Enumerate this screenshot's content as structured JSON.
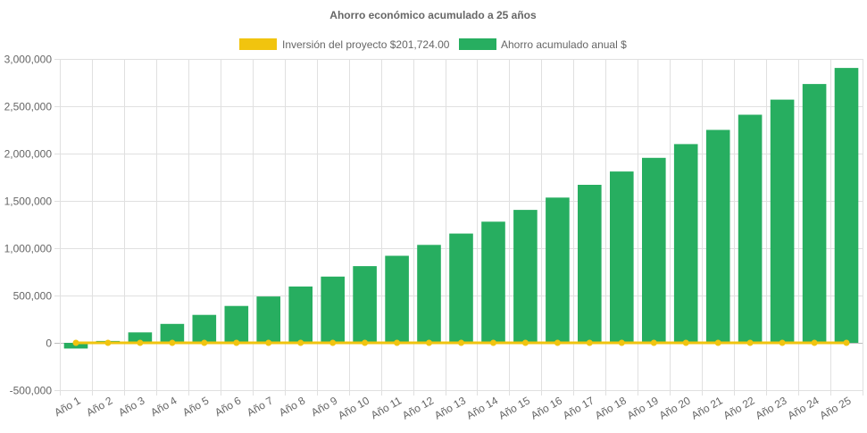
{
  "chart_data": {
    "type": "bar",
    "title": "Ahorro económico acumulado a 25 años",
    "categories": [
      "Año 1",
      "Año 2",
      "Año 3",
      "Año 4",
      "Año 5",
      "Año 6",
      "Año 7",
      "Año 8",
      "Año 9",
      "Año 10",
      "Año 11",
      "Año 12",
      "Año 13",
      "Año 14",
      "Año 15",
      "Año 16",
      "Año 17",
      "Año 18",
      "Año 19",
      "Año 20",
      "Año 21",
      "Año 22",
      "Año 23",
      "Año 24",
      "Año 25"
    ],
    "series": [
      {
        "name": "Inversión del proyecto $201,724.00",
        "type": "line",
        "color": "#f1c40f",
        "values": [
          0,
          0,
          0,
          0,
          0,
          0,
          0,
          0,
          0,
          0,
          0,
          0,
          0,
          0,
          0,
          0,
          0,
          0,
          0,
          0,
          0,
          0,
          0,
          0,
          0
        ]
      },
      {
        "name": "Ahorro acumulado anual $",
        "type": "bar",
        "color": "#27ae60",
        "values": [
          -60000,
          20000,
          110000,
          200000,
          295000,
          390000,
          490000,
          595000,
          700000,
          810000,
          920000,
          1035000,
          1155000,
          1280000,
          1405000,
          1535000,
          1670000,
          1810000,
          1955000,
          2100000,
          2250000,
          2410000,
          2570000,
          2735000,
          2905000
        ]
      }
    ],
    "ylim": [
      -500000,
      3000000
    ],
    "yticks": [
      -500000,
      0,
      500000,
      1000000,
      1500000,
      2000000,
      2500000,
      3000000
    ],
    "ytick_labels": [
      "-500,000",
      "0",
      "500,000",
      "1,000,000",
      "1,500,000",
      "2,000,000",
      "2,500,000",
      "3,000,000"
    ],
    "grid": true,
    "legend_position": "top"
  }
}
